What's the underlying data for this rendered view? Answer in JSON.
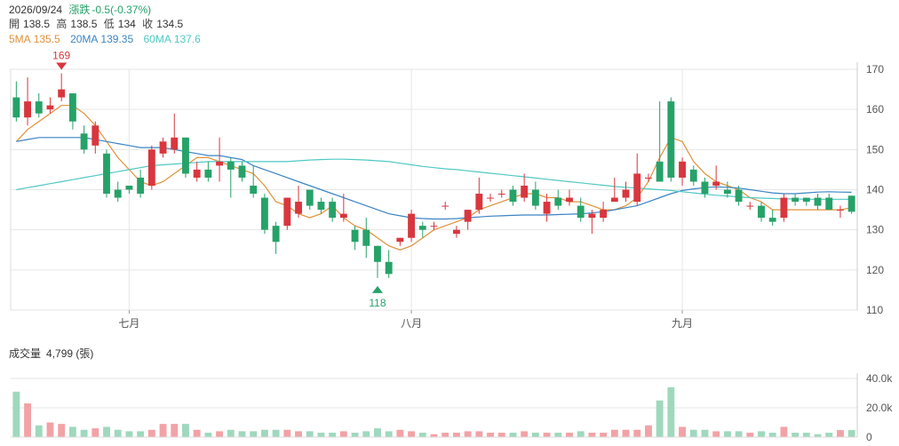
{
  "header": {
    "date": "2026/09/24",
    "change_label": "漲跌",
    "change_value": "-0.5(-0.37%)",
    "open_label": "開",
    "open_value": "138.5",
    "high_label": "高",
    "high_value": "138.5",
    "low_label": "低",
    "low_value": "134",
    "close_label": "收",
    "close_value": "134.5",
    "ma5_label": "5MA",
    "ma5_value": "135.5",
    "ma20_label": "20MA",
    "ma20_value": "139.35",
    "ma60_label": "60MA",
    "ma60_value": "137.6"
  },
  "volume_header": {
    "label": "成交量",
    "value": "4,799 (張)"
  },
  "colors": {
    "up": "#d9363e",
    "down": "#26a269",
    "ma5": "#e0913a",
    "ma20": "#3a84c4",
    "ma60": "#4fc8c4",
    "vol_up": "#f2a2a6",
    "vol_down": "#9fd8bd",
    "grid": "#e6e6e6"
  },
  "chart_data": [
    {
      "type": "candlestick",
      "title": "",
      "ylim": [
        110,
        170
      ],
      "y_ticks": [
        "170",
        "160",
        "150",
        "140",
        "130",
        "120",
        "110"
      ],
      "x_labels": [
        {
          "label": "七月",
          "index": 10
        },
        {
          "label": "八月",
          "index": 35
        },
        {
          "label": "九月",
          "index": 59
        }
      ],
      "annotations": [
        {
          "text": "169",
          "index": 4,
          "value": 169,
          "kind": "high"
        },
        {
          "text": "118",
          "index": 32,
          "value": 118,
          "kind": "low"
        }
      ],
      "grid": true,
      "candles": [
        [
          163,
          158,
          167,
          157
        ],
        [
          158,
          162,
          168,
          156
        ],
        [
          162,
          159,
          164,
          158
        ],
        [
          160,
          161,
          163,
          159
        ],
        [
          163,
          165,
          169,
          162
        ],
        [
          164,
          157,
          164,
          155
        ],
        [
          154,
          150,
          156,
          149
        ],
        [
          151,
          156,
          157,
          149
        ],
        [
          149,
          139,
          150,
          138
        ],
        [
          140,
          138,
          142,
          137
        ],
        [
          141,
          140,
          141,
          139
        ],
        [
          143,
          139,
          145,
          138
        ],
        [
          141,
          150,
          151,
          140
        ],
        [
          149,
          152,
          153,
          148
        ],
        [
          150,
          153,
          159,
          149
        ],
        [
          153,
          144,
          153,
          143
        ],
        [
          143,
          145,
          147,
          142
        ],
        [
          145,
          143,
          147,
          142
        ],
        [
          146,
          147,
          153,
          142
        ],
        [
          147,
          145,
          148,
          138
        ],
        [
          146,
          143,
          147,
          142
        ],
        [
          141,
          139,
          146,
          138
        ],
        [
          138,
          130,
          139,
          129
        ],
        [
          131,
          127,
          132,
          124
        ],
        [
          131,
          138,
          138,
          130
        ],
        [
          134,
          137,
          141,
          133
        ],
        [
          140,
          136,
          140,
          135
        ],
        [
          137,
          135,
          138,
          134
        ],
        [
          137,
          133,
          138,
          132
        ],
        [
          133,
          134,
          139,
          132
        ],
        [
          130,
          127,
          131,
          125
        ],
        [
          130,
          126,
          133,
          123
        ],
        [
          126,
          122,
          126,
          118
        ],
        [
          122,
          119,
          125,
          118
        ],
        [
          127,
          128,
          128,
          126
        ],
        [
          128,
          134,
          135,
          127
        ],
        [
          131,
          130,
          132,
          128
        ],
        [
          131,
          131,
          132,
          130
        ],
        [
          136,
          136,
          137,
          135
        ],
        [
          129,
          130,
          131,
          128
        ],
        [
          132,
          135,
          135,
          130
        ],
        [
          135,
          139,
          143,
          134
        ],
        [
          138,
          138,
          139,
          137
        ],
        [
          139,
          139,
          140,
          138
        ],
        [
          140,
          137,
          141,
          136
        ],
        [
          138,
          141,
          144,
          137
        ],
        [
          140,
          136,
          142,
          135
        ],
        [
          134,
          137,
          139,
          132
        ],
        [
          138,
          136,
          140,
          135
        ],
        [
          137,
          138,
          140,
          136
        ],
        [
          136,
          133,
          138,
          132
        ],
        [
          133,
          134,
          135,
          129
        ],
        [
          133,
          135,
          137,
          132
        ],
        [
          137,
          138,
          143,
          137
        ],
        [
          138,
          140,
          142,
          137
        ],
        [
          137,
          144,
          149,
          136
        ],
        [
          143,
          143,
          144,
          142
        ],
        [
          147,
          142,
          162,
          142
        ],
        [
          162,
          143,
          163,
          142
        ],
        [
          143,
          147,
          148,
          141
        ],
        [
          145,
          142,
          146,
          141
        ],
        [
          142,
          139,
          143,
          138
        ],
        [
          141,
          142,
          146,
          140
        ],
        [
          140,
          139,
          142,
          138
        ],
        [
          140,
          137,
          141,
          136
        ],
        [
          136,
          136,
          137,
          135
        ],
        [
          136,
          133,
          137,
          132
        ],
        [
          133,
          132,
          135,
          131
        ],
        [
          133,
          138,
          139,
          132
        ],
        [
          138,
          137,
          139,
          136
        ],
        [
          138,
          137,
          138,
          136
        ],
        [
          138,
          136,
          139,
          135
        ],
        [
          138,
          135,
          139,
          135
        ],
        [
          135,
          135,
          136,
          133
        ],
        [
          138.5,
          134.5,
          138.5,
          134
        ]
      ],
      "series": [
        {
          "name": "5MA",
          "values": [
            152,
            155,
            157,
            159,
            161,
            161,
            159,
            156,
            152,
            148,
            145,
            142,
            141,
            142,
            144,
            146,
            148,
            148,
            147,
            146,
            145,
            144,
            141,
            137,
            136,
            134,
            133,
            134,
            136,
            133,
            131,
            130,
            128,
            126,
            125,
            126,
            128,
            130,
            131,
            132,
            133,
            135,
            136,
            137,
            138,
            139,
            139,
            138,
            138,
            137,
            137,
            136,
            135,
            135,
            136,
            138,
            142,
            148,
            153,
            152,
            147,
            144,
            142,
            141,
            140,
            138,
            137,
            135,
            135,
            135,
            135,
            135,
            135,
            135,
            135.5
          ]
        },
        {
          "name": "20MA",
          "values": [
            152,
            152.5,
            153,
            153,
            153,
            153,
            153,
            152.5,
            152,
            151.5,
            151,
            150.5,
            150.5,
            150.5,
            150,
            149.5,
            149,
            148.5,
            148.5,
            148,
            147.5,
            146,
            145,
            144,
            143,
            142,
            141,
            140,
            139,
            138,
            137,
            136,
            135,
            134,
            133.5,
            133,
            132.8,
            132.7,
            132.7,
            132.8,
            133,
            133.2,
            133.4,
            133.5,
            133.6,
            133.7,
            133.7,
            133.7,
            133.8,
            133.9,
            134,
            134.2,
            134.5,
            135,
            135.5,
            136,
            137,
            138,
            139,
            139.8,
            140.2,
            140.5,
            140.7,
            140.6,
            140.4,
            140,
            139.6,
            139.2,
            139,
            139,
            139.2,
            139.4,
            139.5,
            139.4,
            139.35
          ]
        },
        {
          "name": "60MA",
          "values": [
            140,
            140.5,
            141,
            141.5,
            142,
            142.5,
            143,
            143.5,
            144,
            144.5,
            145,
            145.5,
            146,
            146.2,
            146.4,
            146.6,
            146.8,
            147,
            147,
            147,
            147,
            147,
            147,
            147,
            147,
            147.2,
            147.4,
            147.5,
            147.6,
            147.6,
            147.5,
            147.4,
            147.2,
            147,
            146.6,
            146.2,
            145.8,
            145.5,
            145.2,
            145,
            144.7,
            144.4,
            144.1,
            143.8,
            143.5,
            143.2,
            142.9,
            142.6,
            142.3,
            142,
            141.7,
            141.4,
            141.1,
            140.8,
            140.6,
            140.4,
            140.2,
            140,
            139.8,
            139.5,
            139.2,
            138.9,
            138.6,
            138.4,
            138.2,
            138,
            137.9,
            137.8,
            137.7,
            137.7,
            137.6,
            137.6,
            137.6,
            137.6,
            137.6
          ]
        }
      ]
    },
    {
      "type": "bar",
      "title": "",
      "ylim": [
        0,
        40000
      ],
      "y_ticks": [
        "40.0k",
        "20.0k",
        "0"
      ],
      "values": [
        31000,
        23000,
        8000,
        10000,
        9000,
        7000,
        5000,
        6000,
        7000,
        5000,
        4000,
        4000,
        5000,
        9000,
        9000,
        9000,
        5000,
        3000,
        4000,
        5000,
        4000,
        4000,
        5000,
        5000,
        5000,
        4000,
        4000,
        3000,
        3000,
        4000,
        3000,
        4000,
        6000,
        4000,
        5000,
        4000,
        3000,
        2000,
        3000,
        3000,
        4000,
        4000,
        3000,
        3000,
        3000,
        4000,
        3000,
        3000,
        3000,
        3000,
        4000,
        3000,
        3000,
        5000,
        5000,
        5000,
        8000,
        25000,
        34000,
        7000,
        5000,
        5000,
        4000,
        4000,
        4000,
        3000,
        4000,
        3000,
        7000,
        3000,
        3000,
        2000,
        3000,
        4800,
        4799
      ]
    }
  ]
}
